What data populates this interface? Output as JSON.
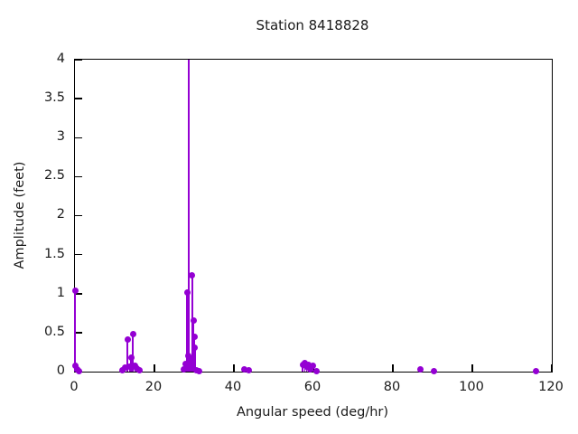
{
  "title": "Station 8418828",
  "axes": {
    "xlabel": "Angular speed (deg/hr)",
    "ylabel": "Amplitude (feet)",
    "xticks": [
      "0",
      "20",
      "40",
      "60",
      "80",
      "100",
      "120"
    ],
    "yticks": [
      "0",
      "0.5",
      "1",
      "1.5",
      "2",
      "2.5",
      "3",
      "3.5",
      "4"
    ]
  },
  "colors": {
    "accent": "#9400D3",
    "frame": "#000000",
    "text": "#1a1a1a"
  },
  "chart_data": {
    "type": "scatter",
    "style": "stem",
    "title": "Station 8418828",
    "xlabel": "Angular speed (deg/hr)",
    "ylabel": "Amplitude (feet)",
    "xlim": [
      0,
      120
    ],
    "ylim": [
      0,
      4
    ],
    "grid": false,
    "legend": "none",
    "points": [
      [
        0.0,
        1.04
      ],
      [
        0.2,
        0.07
      ],
      [
        0.6,
        0.03
      ],
      [
        1.0,
        0.01
      ],
      [
        11.9,
        0.02
      ],
      [
        12.5,
        0.05
      ],
      [
        13.2,
        0.41
      ],
      [
        13.7,
        0.06
      ],
      [
        14.1,
        0.18
      ],
      [
        14.6,
        0.48
      ],
      [
        15.1,
        0.07
      ],
      [
        15.6,
        0.04
      ],
      [
        16.3,
        0.02
      ],
      [
        27.3,
        0.03
      ],
      [
        27.9,
        0.1
      ],
      [
        28.2,
        1.01
      ],
      [
        28.5,
        0.2
      ],
      [
        28.6,
        4.5
      ],
      [
        28.9,
        0.17
      ],
      [
        29.2,
        0.13
      ],
      [
        29.5,
        1.24
      ],
      [
        29.8,
        0.66
      ],
      [
        30.0,
        0.45
      ],
      [
        30.2,
        0.31
      ],
      [
        30.6,
        0.02
      ],
      [
        31.2,
        0.01
      ],
      [
        42.6,
        0.03
      ],
      [
        43.7,
        0.02
      ],
      [
        57.3,
        0.09
      ],
      [
        57.8,
        0.11
      ],
      [
        58.3,
        0.06
      ],
      [
        58.8,
        0.09
      ],
      [
        59.3,
        0.03
      ],
      [
        59.9,
        0.07
      ],
      [
        60.7,
        0.01
      ],
      [
        87.0,
        0.03
      ],
      [
        90.3,
        0.01
      ],
      [
        116.0,
        0.01
      ]
    ],
    "note": "stem at x=28.6 exceeds y-axis maximum and is clipped at top of plot"
  }
}
